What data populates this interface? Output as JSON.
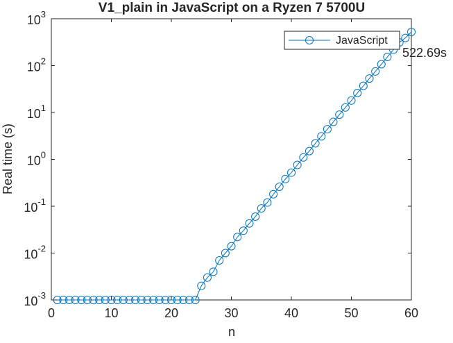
{
  "chart_data": {
    "type": "line",
    "title": "V1_plain in JavaScript on a Ryzen 7 5700U",
    "xlabel": "n",
    "ylabel": "Real time (s)",
    "x": [
      1,
      2,
      3,
      4,
      5,
      6,
      7,
      8,
      9,
      10,
      11,
      12,
      13,
      14,
      15,
      16,
      17,
      18,
      19,
      20,
      21,
      22,
      23,
      24,
      25,
      26,
      27,
      28,
      29,
      30,
      31,
      32,
      33,
      34,
      35,
      36,
      37,
      38,
      39,
      40,
      41,
      42,
      43,
      44,
      45,
      46,
      47,
      48,
      49,
      50,
      51,
      52,
      53,
      54,
      55,
      56,
      57,
      58,
      59,
      60
    ],
    "series": [
      {
        "name": "JavaScript",
        "color": "#0072bd",
        "values": [
          0.001,
          0.001,
          0.001,
          0.001,
          0.001,
          0.001,
          0.001,
          0.001,
          0.001,
          0.001,
          0.001,
          0.001,
          0.001,
          0.001,
          0.001,
          0.001,
          0.001,
          0.001,
          0.001,
          0.001,
          0.001,
          0.001,
          0.001,
          0.001,
          0.002,
          0.003,
          0.004,
          0.007,
          0.01,
          0.014,
          0.022,
          0.03,
          0.043,
          0.06,
          0.09,
          0.12,
          0.18,
          0.26,
          0.38,
          0.52,
          0.76,
          1.1,
          1.5,
          2.2,
          3.1,
          4.4,
          6.3,
          9.0,
          12.8,
          18,
          26,
          37,
          53,
          75,
          107,
          153,
          218,
          312,
          390,
          522.69
        ]
      }
    ],
    "annotation": "522.69s",
    "xlim": [
      0,
      60
    ],
    "xticks": [
      0,
      10,
      20,
      30,
      40,
      50,
      60
    ],
    "ylim": [
      0.001,
      1000
    ],
    "ylog": true,
    "yticks": [
      {
        "value": 0.001,
        "label": "10",
        "exponent": "-3"
      },
      {
        "value": 0.01,
        "label": "10",
        "exponent": "-2"
      },
      {
        "value": 0.1,
        "label": "10",
        "exponent": "-1"
      },
      {
        "value": 1,
        "label": "10",
        "exponent": "0"
      },
      {
        "value": 10,
        "label": "10",
        "exponent": "1"
      },
      {
        "value": 100,
        "label": "10",
        "exponent": "2"
      },
      {
        "value": 1000,
        "label": "10",
        "exponent": "3"
      }
    ],
    "legend": "northeast",
    "grid": false
  }
}
